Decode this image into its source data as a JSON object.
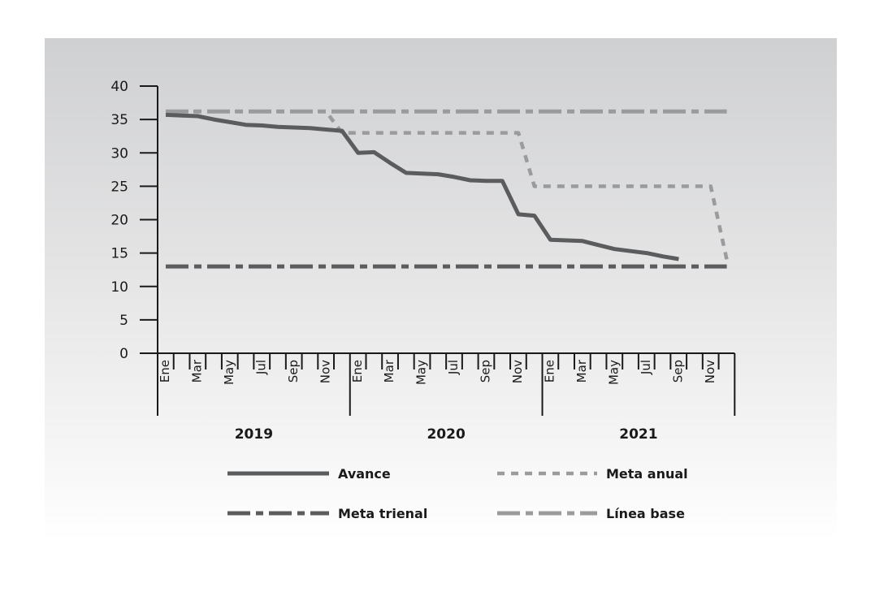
{
  "chart_data": {
    "type": "line",
    "y_ticks": [
      0,
      5,
      10,
      15,
      20,
      25,
      30,
      35,
      40
    ],
    "ylim": [
      0,
      40
    ],
    "month_labels": [
      "Ene",
      "",
      "Mar",
      "",
      "May",
      "",
      "Jul",
      "",
      "Sep",
      "",
      "Nov",
      ""
    ],
    "years": [
      "2019",
      "2020",
      "2021"
    ],
    "x": [
      "2019-01",
      "2019-02",
      "2019-03",
      "2019-04",
      "2019-05",
      "2019-06",
      "2019-07",
      "2019-08",
      "2019-09",
      "2019-10",
      "2019-11",
      "2019-12",
      "2020-01",
      "2020-02",
      "2020-03",
      "2020-04",
      "2020-05",
      "2020-06",
      "2020-07",
      "2020-08",
      "2020-09",
      "2020-10",
      "2020-11",
      "2020-12",
      "2021-01",
      "2021-02",
      "2021-03",
      "2021-04",
      "2021-05",
      "2021-06",
      "2021-07",
      "2021-08",
      "2021-09",
      "2021-10",
      "2021-11",
      "2021-12"
    ],
    "series": [
      {
        "name": "Avance",
        "color": "#5b5c5e",
        "dash": "solid",
        "values": [
          35.7,
          35.6,
          35.5,
          35.0,
          34.6,
          34.2,
          34.1,
          33.9,
          33.8,
          33.7,
          33.5,
          33.3,
          30.0,
          30.1,
          28.5,
          27.0,
          26.9,
          26.8,
          26.4,
          25.9,
          25.8,
          25.8,
          20.8,
          20.6,
          17.0,
          16.9,
          16.8,
          16.2,
          15.6,
          15.3,
          15.0,
          14.5,
          14.1,
          null,
          null,
          null
        ]
      },
      {
        "name": "Meta anual",
        "color": "#9a9b9d",
        "dash": "dotted",
        "values": [
          36.2,
          36.2,
          36.2,
          36.2,
          36.2,
          36.2,
          36.2,
          36.2,
          36.2,
          36.2,
          36.2,
          33.0,
          33.0,
          33.0,
          33.0,
          33.0,
          33.0,
          33.0,
          33.0,
          33.0,
          33.0,
          33.0,
          33.0,
          25.0,
          25.0,
          25.0,
          25.0,
          25.0,
          25.0,
          25.0,
          25.0,
          25.0,
          25.0,
          25.0,
          25.0,
          14.0
        ]
      },
      {
        "name": "Meta trienal",
        "color": "#5b5c5e",
        "dash": "dash-dot",
        "values": [
          13,
          13,
          13,
          13,
          13,
          13,
          13,
          13,
          13,
          13,
          13,
          13,
          13,
          13,
          13,
          13,
          13,
          13,
          13,
          13,
          13,
          13,
          13,
          13,
          13,
          13,
          13,
          13,
          13,
          13,
          13,
          13,
          13,
          13,
          13,
          13
        ]
      },
      {
        "name": "Línea base",
        "color": "#9a9b9d",
        "dash": "dash-dot",
        "values": [
          36.2,
          36.2,
          36.2,
          36.2,
          36.2,
          36.2,
          36.2,
          36.2,
          36.2,
          36.2,
          36.2,
          36.2,
          36.2,
          36.2,
          36.2,
          36.2,
          36.2,
          36.2,
          36.2,
          36.2,
          36.2,
          36.2,
          36.2,
          36.2,
          36.2,
          36.2,
          36.2,
          36.2,
          36.2,
          36.2,
          36.2,
          36.2,
          36.2,
          36.2,
          36.2,
          36.2
        ]
      }
    ],
    "legend_position": "bottom",
    "grid": false
  }
}
